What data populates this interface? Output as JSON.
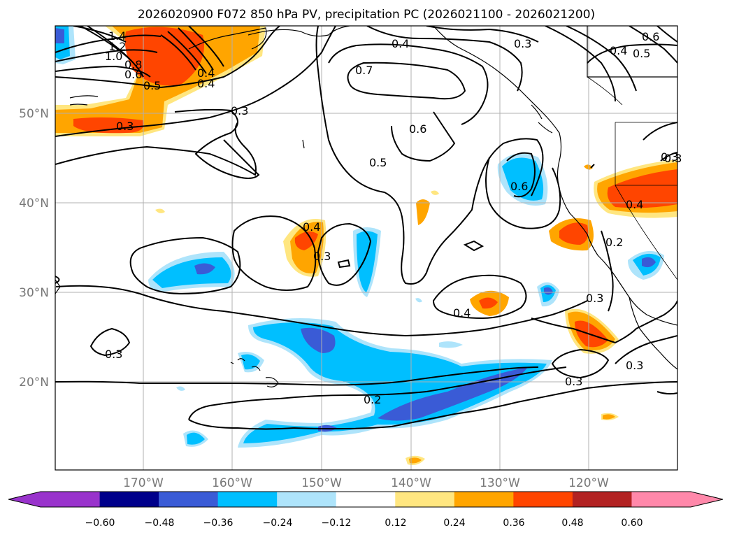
{
  "chart_data": {
    "type": "contour-map",
    "title": "2026020900 F072 850 hPa PV, precipitation PC (2026021100 - 2026021200)",
    "xaxis": {
      "ticks": [
        "170°W",
        "160°W",
        "150°W",
        "140°W",
        "130°W",
        "120°W"
      ],
      "range_deg": [
        -180,
        -110
      ]
    },
    "yaxis": {
      "ticks": [
        "20°N",
        "30°N",
        "40°N",
        "50°N"
      ],
      "range_deg": [
        10,
        60
      ]
    },
    "grid": true,
    "colorbar": {
      "ticks": [
        "−0.60",
        "−0.48",
        "−0.36",
        "−0.24",
        "−0.12",
        "0.12",
        "0.24",
        "0.36",
        "0.48",
        "0.60"
      ],
      "colors": [
        "#9933cc",
        "#00008b",
        "#3a5bd6",
        "#00bfff",
        "#aee4fb",
        "#ffffff",
        "#ffe680",
        "#ffa500",
        "#ff4500",
        "#b22222",
        "#ff88aa"
      ],
      "extend": "both"
    },
    "contour_labels": [
      "1.4",
      "1.2",
      "1.0",
      "0.8",
      "0.6",
      "0.5",
      "0.4",
      "0.3",
      "0.3",
      "0.4",
      "0.7",
      "0.3",
      "0.6",
      "0.4",
      "0.5",
      "0.5",
      "0.6",
      "0.6",
      "0.4",
      "0.3",
      "0.4",
      "0.3",
      "0.2",
      "0.3",
      "0.4",
      "0.3",
      "0.3",
      "0.3",
      "0.2",
      "0.3",
      "0.4"
    ]
  }
}
